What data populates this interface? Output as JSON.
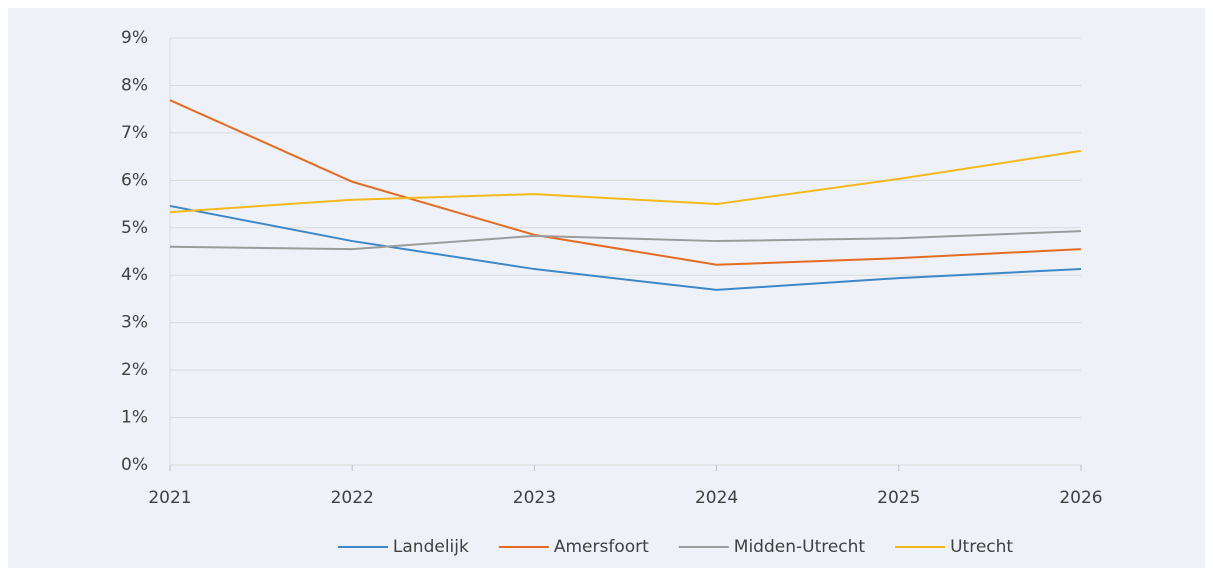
{
  "chart_data": {
    "type": "line",
    "x": [
      2021,
      2022,
      2023,
      2024,
      2025,
      2026
    ],
    "xlim": [
      2021,
      2026
    ],
    "xticks": [
      2021,
      2022,
      2023,
      2024,
      2025,
      2026
    ],
    "ylim": [
      0,
      9
    ],
    "yticks": [
      {
        "value": 0,
        "label": "0%"
      },
      {
        "value": 1,
        "label": "1%"
      },
      {
        "value": 2,
        "label": "2%"
      },
      {
        "value": 3,
        "label": "3%"
      },
      {
        "value": 4,
        "label": "4%"
      },
      {
        "value": 5,
        "label": "5%"
      },
      {
        "value": 6,
        "label": "6%"
      },
      {
        "value": 7,
        "label": "7%"
      },
      {
        "value": 8,
        "label": "8%"
      },
      {
        "value": 9,
        "label": "9%"
      }
    ],
    "grid": true,
    "legend": "bottom",
    "series": [
      {
        "name": "Landelijk",
        "color": "#3d87c7",
        "values": [
          5.46,
          4.72,
          4.13,
          3.69,
          3.94,
          4.13
        ]
      },
      {
        "name": "Amersfoort",
        "color": "#e46c22",
        "values": [
          7.69,
          5.97,
          4.85,
          4.22,
          4.36,
          4.55
        ]
      },
      {
        "name": "Midden-Utrecht",
        "color": "#9b9b9b",
        "values": [
          4.6,
          4.55,
          4.83,
          4.72,
          4.78,
          4.93
        ]
      },
      {
        "name": "Utrecht",
        "color": "#f4b81c",
        "values": [
          5.33,
          5.59,
          5.71,
          5.5,
          6.03,
          6.62
        ]
      }
    ]
  }
}
